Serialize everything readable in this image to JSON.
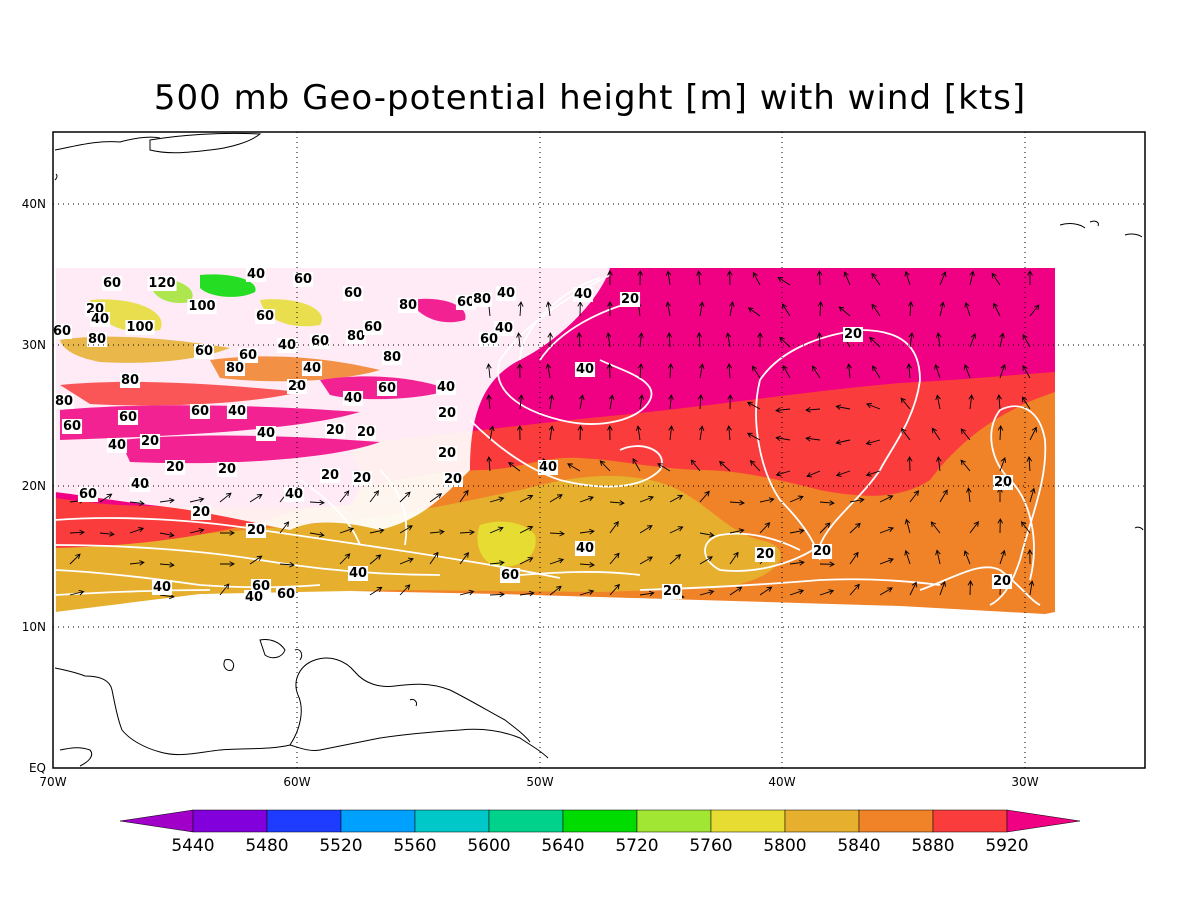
{
  "title": "500 mb Geo-potential height [m] with wind [kts]",
  "axes": {
    "lon_labels": [
      "70W",
      "60W",
      "50W",
      "40W",
      "30W"
    ],
    "lat_labels": [
      "EQ",
      "10N",
      "20N",
      "30N",
      "40N"
    ]
  },
  "colorbar": {
    "labels": [
      "5440",
      "5480",
      "5520",
      "5560",
      "5600",
      "5640",
      "5720",
      "5760",
      "5800",
      "5840",
      "5880",
      "5920"
    ],
    "colors": [
      "#a000c8",
      "#8200dc",
      "#1e3cff",
      "#00a0ff",
      "#00c8c8",
      "#00d28c",
      "#00dc00",
      "#a0e632",
      "#e6dc32",
      "#e6af2d",
      "#f08228",
      "#fa3c3c",
      "#f00082"
    ]
  },
  "contour_labels": [
    "20",
    "40",
    "60",
    "80",
    "100",
    "120"
  ],
  "colors": {
    "background": "#ffffff",
    "contour": "#ffffff",
    "coast": "#000000",
    "band_5920": "#f00082",
    "band_5880": "#fa3c3c",
    "band_5840": "#f08228",
    "band_5800": "#e6af2d",
    "band_5760": "#e6dc32"
  }
}
